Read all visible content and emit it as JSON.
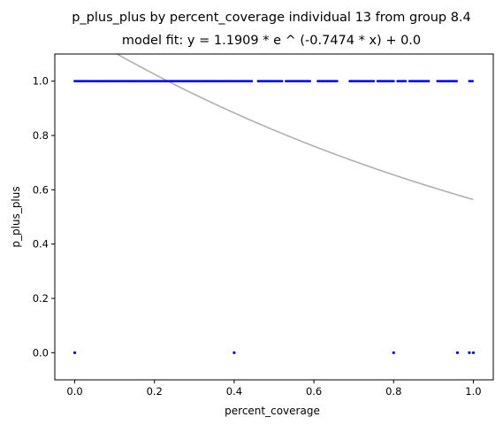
{
  "chart_data": {
    "type": "scatter",
    "title": "p_plus_plus by percent_coverage individual 13 from group 8.4",
    "subtitle": "model fit: y = 1.1909 * e ^ (-0.7474 * x) + 0.0",
    "xlabel": "percent_coverage",
    "ylabel": "p_plus_plus",
    "xlim": [
      -0.05,
      1.05
    ],
    "ylim": [
      -0.1,
      1.1
    ],
    "x_ticks": [
      0.0,
      0.2,
      0.4,
      0.6,
      0.8,
      1.0
    ],
    "x_tick_labels": [
      "0.0",
      "0.2",
      "0.4",
      "0.6",
      "0.8",
      "1.0"
    ],
    "y_ticks": [
      0.0,
      0.2,
      0.4,
      0.6,
      0.8,
      1.0
    ],
    "y_tick_labels": [
      "0.0",
      "0.2",
      "0.4",
      "0.6",
      "0.8",
      "1.0"
    ],
    "grid": false,
    "colors": {
      "points": "#0000ff",
      "fit": "#b0b0b0"
    },
    "fit": {
      "a": 1.1909,
      "b": -0.7474,
      "c": 0.0
    },
    "point_segments_y1": [
      [
        0.0,
        0.445
      ],
      [
        0.46,
        0.52
      ],
      [
        0.53,
        0.59
      ],
      [
        0.61,
        0.66
      ],
      [
        0.69,
        0.75
      ],
      [
        0.76,
        0.8
      ],
      [
        0.81,
        0.83
      ],
      [
        0.84,
        0.89
      ],
      [
        0.91,
        0.96
      ],
      [
        0.99,
        1.0
      ]
    ],
    "points_y0": [
      [
        0.0,
        0
      ],
      [
        0.4,
        0
      ],
      [
        0.8,
        0
      ],
      [
        0.96,
        0
      ],
      [
        0.99,
        0
      ],
      [
        1.0,
        0
      ]
    ]
  }
}
